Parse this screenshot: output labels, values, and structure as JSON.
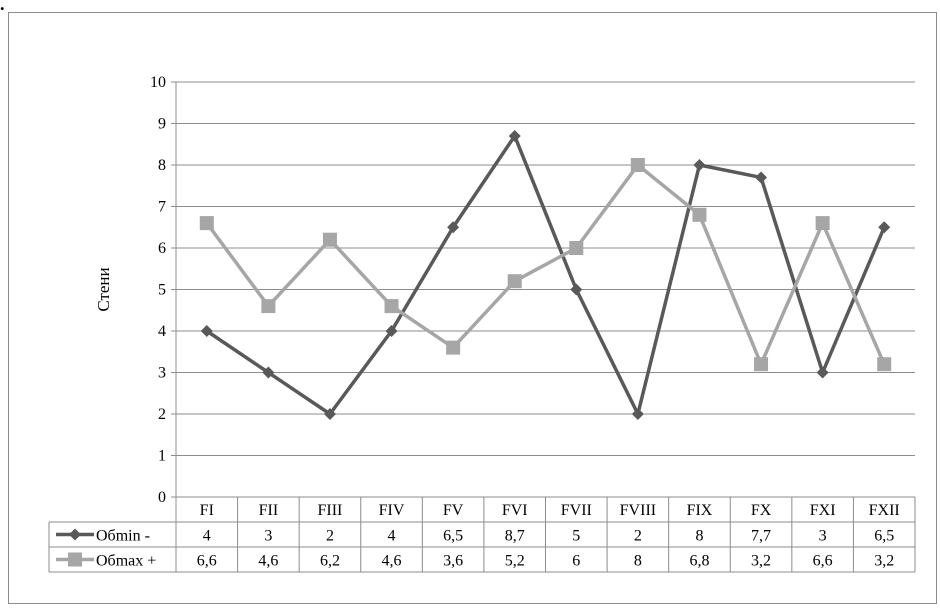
{
  "corner_mark": ".",
  "chart_data": {
    "type": "line",
    "title": "",
    "xlabel": "",
    "ylabel": "Стени",
    "ylim": [
      0,
      10
    ],
    "yticks": [
      0,
      1,
      2,
      3,
      4,
      5,
      6,
      7,
      8,
      9,
      10
    ],
    "grid": true,
    "legend": "data-table",
    "categories": [
      "FI",
      "FII",
      "FIII",
      "FIV",
      "FV",
      "FVI",
      "FVII",
      "FVIII",
      "FIX",
      "FX",
      "FXI",
      "FXII"
    ],
    "series": [
      {
        "name": "Обmin -",
        "marker": "diamond",
        "color": "#595959",
        "values": [
          4,
          3,
          2,
          4,
          6.5,
          8.7,
          5,
          2,
          8,
          7.7,
          3,
          6.5
        ],
        "table_values": [
          "4",
          "3",
          "2",
          "4",
          "6,5",
          "8,7",
          "5",
          "2",
          "8",
          "7,7",
          "3",
          "6,5"
        ]
      },
      {
        "name": "Обmax +",
        "marker": "square",
        "color": "#a6a6a6",
        "values": [
          6.6,
          4.6,
          6.2,
          4.6,
          3.6,
          5.2,
          6,
          8,
          6.8,
          3.2,
          6.6,
          3.2
        ],
        "table_values": [
          "6,6",
          "4,6",
          "6,2",
          "4,6",
          "3,6",
          "5,2",
          "6",
          "8",
          "6,8",
          "3,2",
          "6,6",
          "3,2"
        ]
      }
    ]
  }
}
